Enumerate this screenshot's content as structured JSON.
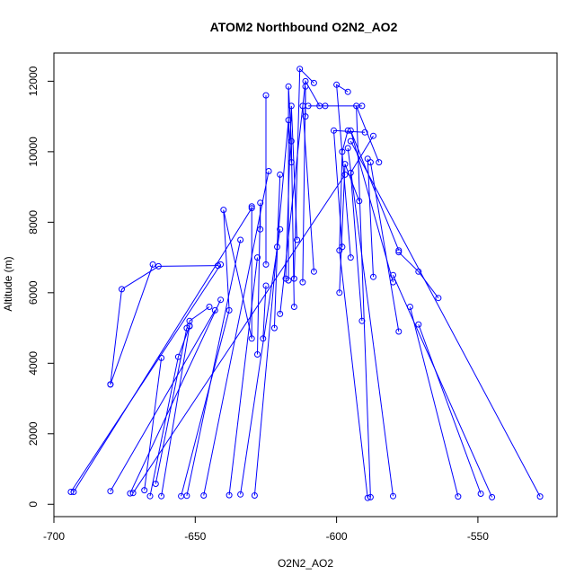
{
  "chart_data": {
    "type": "line",
    "title": "ATOM2 Northbound O2N2_AO2",
    "xlabel": "O2N2_AO2",
    "ylabel": "Altitude (m)",
    "xlim": [
      -700,
      -522
    ],
    "ylim": [
      -350,
      12800
    ],
    "x_ticks": [
      -700,
      -650,
      -600,
      -550
    ],
    "y_ticks": [
      0,
      2000,
      4000,
      6000,
      8000,
      10000,
      12000
    ],
    "grid": false,
    "markers": "open-circle",
    "color": "#0000ff",
    "segments": [
      [
        [
          -694,
          350
        ],
        [
          -641,
          6800
        ]
      ],
      [
        [
          -680,
          370
        ],
        [
          -643,
          5500
        ]
      ],
      [
        [
          -680,
          3400
        ],
        [
          -676,
          6100
        ],
        [
          -663,
          6750
        ],
        [
          -642,
          6770
        ]
      ],
      [
        [
          -680,
          3400
        ],
        [
          -665,
          6800
        ]
      ],
      [
        [
          -673,
          310
        ],
        [
          -641,
          5800
        ]
      ],
      [
        [
          -668,
          400
        ],
        [
          -662,
          4150
        ]
      ],
      [
        [
          -666,
          230
        ],
        [
          -656,
          4180
        ],
        [
          -652,
          5050
        ],
        [
          -652,
          5200
        ],
        [
          -645,
          5600
        ]
      ],
      [
        [
          -664,
          580
        ],
        [
          -653,
          5000
        ]
      ],
      [
        [
          -662,
          230
        ],
        [
          -652,
          5060
        ]
      ],
      [
        [
          -655,
          230
        ],
        [
          -638,
          5500
        ],
        [
          -640,
          8350
        ],
        [
          -630,
          4700
        ],
        [
          -630,
          8450
        ]
      ],
      [
        [
          -653,
          240
        ],
        [
          -634,
          7500
        ]
      ],
      [
        [
          -647,
          250
        ],
        [
          -624,
          9450
        ]
      ],
      [
        [
          -638,
          260
        ],
        [
          -628,
          7000
        ]
      ],
      [
        [
          -634,
          280
        ],
        [
          -620,
          7800
        ]
      ],
      [
        [
          -629,
          250
        ],
        [
          -617,
          10900
        ],
        [
          -616,
          9700
        ]
      ],
      [
        [
          -628,
          4250
        ],
        [
          -627,
          8550
        ],
        [
          -627,
          7800
        ]
      ],
      [
        [
          -626,
          4700
        ],
        [
          -625,
          6200
        ]
      ],
      [
        [
          -625,
          11600
        ],
        [
          -625,
          6800
        ]
      ],
      [
        [
          -622,
          5000
        ],
        [
          -620,
          9350
        ],
        [
          -621,
          7300
        ]
      ],
      [
        [
          -620,
          5400
        ],
        [
          -611,
          12000
        ],
        [
          -606,
          11300
        ]
      ],
      [
        [
          -618,
          6400
        ],
        [
          -616,
          11300
        ],
        [
          -614,
          7500
        ]
      ],
      [
        [
          -617,
          6350
        ],
        [
          -617,
          11850
        ],
        [
          -616,
          10300
        ],
        [
          -615,
          5600
        ]
      ],
      [
        [
          -615,
          6400
        ],
        [
          -613,
          12350
        ],
        [
          -608,
          11950
        ]
      ],
      [
        [
          -612,
          6300
        ],
        [
          -611,
          11850
        ],
        [
          -611,
          11000
        ]
      ],
      [
        [
          -610,
          11300
        ],
        [
          -604,
          11300
        ],
        [
          -591,
          11300
        ]
      ],
      [
        [
          -608,
          6600
        ],
        [
          -612,
          11300
        ]
      ],
      [
        [
          -599,
          6000
        ],
        [
          -597,
          9650
        ],
        [
          -592,
          8600
        ]
      ],
      [
        [
          -598,
          7300
        ],
        [
          -601,
          10600
        ],
        [
          -590,
          10550
        ]
      ],
      [
        [
          -595,
          7000
        ],
        [
          -600,
          11900
        ],
        [
          -596,
          11700
        ]
      ],
      [
        [
          -591,
          5200
        ],
        [
          -595,
          9400
        ],
        [
          -587,
          10450
        ]
      ],
      [
        [
          -589,
          180
        ],
        [
          -599,
          7200
        ],
        [
          -598,
          10000
        ],
        [
          -596,
          10600
        ]
      ],
      [
        [
          -588,
          200
        ],
        [
          -593,
          11300
        ],
        [
          -585,
          9700
        ]
      ],
      [
        [
          -587,
          6450
        ],
        [
          -589,
          9800
        ]
      ],
      [
        [
          -580,
          230
        ],
        [
          -596,
          10100
        ]
      ],
      [
        [
          -578,
          4900
        ],
        [
          -588,
          9700
        ]
      ],
      [
        [
          -580,
          6300
        ],
        [
          -595,
          10600
        ],
        [
          -578,
          7200
        ]
      ],
      [
        [
          -564,
          5850
        ],
        [
          -571,
          6600
        ],
        [
          -578,
          7150
        ]
      ],
      [
        [
          -557,
          220
        ],
        [
          -574,
          5600
        ]
      ],
      [
        [
          -549,
          300
        ],
        [
          -571,
          5100
        ]
      ],
      [
        [
          -545,
          200
        ],
        [
          -580,
          6500
        ]
      ],
      [
        [
          -528,
          220
        ],
        [
          -595,
          10300
        ]
      ],
      [
        [
          -693,
          350
        ],
        [
          -630,
          8400
        ]
      ],
      [
        [
          -672,
          320
        ],
        [
          -597,
          9350
        ]
      ]
    ]
  }
}
